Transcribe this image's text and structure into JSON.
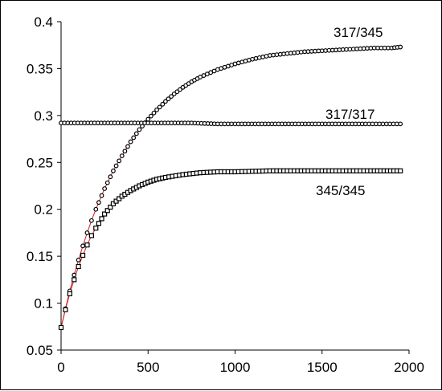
{
  "chart_data": {
    "type": "scatter",
    "title": "",
    "xlabel": "",
    "ylabel": "",
    "xlim": [
      0,
      2000
    ],
    "ylim": [
      0.05,
      0.4
    ],
    "x_ticks": [
      "0",
      "500",
      "1000",
      "1500",
      "2000"
    ],
    "y_ticks": [
      "0.05",
      "0.1",
      "0.15",
      "0.2",
      "0.25",
      "0.3",
      "0.35",
      "0.4"
    ],
    "grid": false,
    "legend": "none",
    "fit_line_color": "#d02020",
    "marker_color": "#000000",
    "series": [
      {
        "label": "317/345",
        "marker": "circle",
        "x": [
          0,
          25,
          50,
          75,
          100,
          125,
          150,
          175,
          200,
          250,
          300,
          350,
          400,
          450,
          500,
          550,
          600,
          650,
          700,
          750,
          800,
          900,
          1000,
          1100,
          1200,
          1300,
          1400,
          1500,
          1600,
          1700,
          1800,
          1900,
          1950
        ],
        "y": [
          0.074,
          0.094,
          0.113,
          0.13,
          0.146,
          0.161,
          0.175,
          0.188,
          0.2,
          0.222,
          0.241,
          0.257,
          0.272,
          0.285,
          0.296,
          0.306,
          0.315,
          0.323,
          0.33,
          0.336,
          0.341,
          0.349,
          0.355,
          0.36,
          0.364,
          0.366,
          0.368,
          0.369,
          0.37,
          0.371,
          0.372,
          0.372,
          0.373
        ]
      },
      {
        "label": "317/317",
        "marker": "circle",
        "x": [
          0,
          250,
          500,
          750,
          900,
          1000,
          1250,
          1500,
          1750,
          1950
        ],
        "y": [
          0.292,
          0.292,
          0.292,
          0.292,
          0.291,
          0.291,
          0.291,
          0.291,
          0.291,
          0.291
        ]
      },
      {
        "label": "345/345",
        "marker": "square",
        "x": [
          0,
          25,
          50,
          75,
          100,
          125,
          150,
          175,
          200,
          250,
          300,
          350,
          400,
          450,
          500,
          550,
          600,
          700,
          800,
          900,
          1000,
          1200,
          1400,
          1600,
          1800,
          1950
        ],
        "y": [
          0.074,
          0.093,
          0.11,
          0.125,
          0.139,
          0.151,
          0.162,
          0.172,
          0.18,
          0.195,
          0.206,
          0.214,
          0.22,
          0.225,
          0.229,
          0.232,
          0.234,
          0.237,
          0.239,
          0.24,
          0.24,
          0.241,
          0.241,
          0.241,
          0.241,
          0.241
        ]
      }
    ]
  }
}
